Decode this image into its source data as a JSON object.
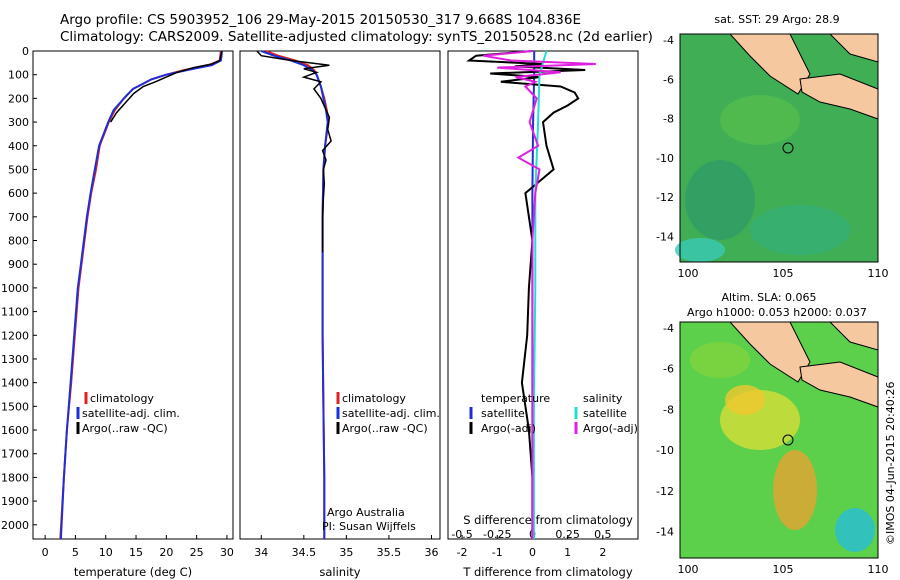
{
  "header": {
    "line1": "Argo profile: CS 5903952_106 29-May-2015 20150530_317 9.668S 104.836E",
    "line2": "Climatology: CARS2009. Satellite-adjusted climatology: synTS_20150528.nc (2d earlier)"
  },
  "colors": {
    "climatology": "#dd2222",
    "satellite": "#1f2fd8",
    "argo": "#000000",
    "sat_s": "#22dddd",
    "argo_s": "#e020e0",
    "land": "#f5c8a0"
  },
  "chart_data": [
    {
      "type": "line",
      "xlabel": "temperature (deg C)",
      "ylabel": "",
      "xlim": [
        -2,
        31
      ],
      "ylim": [
        0,
        2060
      ],
      "xticks": [
        "0",
        "5",
        "10",
        "15",
        "20",
        "25",
        "30"
      ],
      "yticks": [
        "0",
        "100",
        "200",
        "300",
        "400",
        "500",
        "600",
        "700",
        "800",
        "900",
        "1000",
        "1100",
        "1200",
        "1300",
        "1400",
        "1500",
        "1600",
        "1700",
        "1800",
        "1900",
        "2000"
      ],
      "legend": [
        "climatology",
        "satellite-adj. clim.",
        "Argo(..raw -QC)"
      ],
      "legend_position": "lower-center",
      "series": [
        {
          "name": "climatology",
          "depth": [
            0,
            40,
            60,
            80,
            100,
            120,
            140,
            160,
            200,
            250,
            300,
            400,
            500,
            600,
            700,
            800,
            900,
            1000,
            1200,
            1400,
            1600,
            1800,
            2060
          ],
          "values": [
            29,
            28.8,
            27,
            23,
            20,
            17.5,
            16,
            14.5,
            13,
            11.5,
            10.5,
            9,
            8.4,
            7.6,
            7,
            6.5,
            6,
            5.5,
            4.9,
            4.3,
            3.6,
            3.1,
            2.5
          ]
        },
        {
          "name": "satellite-adj. clim.",
          "depth": [
            0,
            40,
            60,
            80,
            100,
            120,
            140,
            160,
            200,
            250,
            300,
            400,
            500,
            600,
            700,
            800,
            900,
            1000,
            1200,
            1400,
            1600,
            1800,
            2060
          ],
          "values": [
            29.2,
            29,
            27.5,
            23.5,
            20,
            17.5,
            16,
            14.5,
            13,
            11.3,
            10.4,
            8.9,
            8.2,
            7.5,
            6.9,
            6.4,
            5.9,
            5.4,
            4.8,
            4.2,
            3.6,
            3.1,
            2.6
          ]
        },
        {
          "name": "Argo(..raw -QC)",
          "depth": [
            0,
            20,
            40,
            55,
            70,
            90,
            110,
            130,
            150,
            180,
            220,
            260,
            300
          ],
          "values": [
            29.1,
            29,
            28.8,
            27.5,
            24.5,
            21.8,
            20,
            18.2,
            16.2,
            14.6,
            13.2,
            11.8,
            10.8
          ]
        }
      ]
    },
    {
      "type": "line",
      "xlabel": "salinity",
      "xlim": [
        33.75,
        36.1
      ],
      "ylim": [
        0,
        2060
      ],
      "xticks": [
        "34",
        "34.5",
        "35",
        "35.5",
        "36"
      ],
      "legend": [
        "climatology",
        "satellite-adj. clim.",
        "Argo(..raw -QC)"
      ],
      "legend_position": "lower-center",
      "annotation": [
        "Argo Australia",
        "PI: Susan Wijffels"
      ],
      "series": [
        {
          "name": "climatology",
          "depth": [
            0,
            20,
            40,
            60,
            80,
            100,
            150,
            200,
            250,
            300,
            400,
            500,
            700,
            900,
            1200,
            1500,
            1800,
            2060
          ],
          "values": [
            34.05,
            34.2,
            34.4,
            34.55,
            34.62,
            34.65,
            34.7,
            34.74,
            34.77,
            34.79,
            34.75,
            34.73,
            34.72,
            34.72,
            34.72,
            34.73,
            34.74,
            34.74
          ]
        },
        {
          "name": "satellite-adj. clim.",
          "depth": [
            0,
            20,
            40,
            60,
            80,
            100,
            150,
            200,
            250,
            300,
            400,
            500,
            700,
            900,
            1200,
            1500,
            1800,
            2060
          ],
          "values": [
            34.0,
            34.15,
            34.35,
            34.5,
            34.6,
            34.65,
            34.7,
            34.73,
            34.76,
            34.78,
            34.75,
            34.73,
            34.72,
            34.72,
            34.72,
            34.73,
            34.74,
            34.74
          ]
        },
        {
          "name": "Argo(..raw -QC)",
          "depth": [
            0,
            20,
            40,
            60,
            75,
            90,
            110,
            130,
            160,
            200,
            240,
            280,
            330,
            380,
            420,
            460,
            500,
            560,
            620,
            700,
            780,
            850
          ],
          "values": [
            33.95,
            34.0,
            34.35,
            34.8,
            34.5,
            34.65,
            34.5,
            34.7,
            34.62,
            34.7,
            34.75,
            34.8,
            34.78,
            34.82,
            34.72,
            34.76,
            34.73,
            34.74,
            34.73,
            34.72,
            34.72,
            34.72
          ]
        }
      ]
    },
    {
      "type": "line",
      "xlabel": "T difference from climatology",
      "xlabel_top": "S difference from climatology",
      "xlim": [
        -2.4,
        3.0
      ],
      "ylim": [
        0,
        2060
      ],
      "xticks": [
        "-2",
        "-1",
        "0",
        "1",
        "2"
      ],
      "xticks_s": [
        "-0.5",
        "-0.25",
        "0",
        "0.25",
        "0.5"
      ],
      "legend_headers": [
        "temperature",
        "salinity"
      ],
      "legend": [
        "satellite",
        "Argo(-adj)",
        "satellite",
        "Argo(-adj)"
      ],
      "series": [
        {
          "name": "satellite",
          "depth": [
            0,
            100,
            300,
            600,
            1000,
            1500,
            2060
          ],
          "values": [
            0.05,
            0.05,
            0.02,
            0,
            0,
            0,
            0
          ]
        },
        {
          "name": "Argo(-adj)",
          "depth": [
            0,
            20,
            40,
            55,
            65,
            80,
            95,
            110,
            130,
            150,
            175,
            200,
            230,
            260,
            300,
            400,
            500,
            600,
            800,
            1000,
            1200,
            1400,
            1600,
            1800,
            2060
          ],
          "values": [
            0,
            -1.6,
            -1.8,
            0.3,
            -0.5,
            1.5,
            -1.2,
            0.2,
            -0.9,
            0.8,
            1.2,
            1.3,
            1.0,
            0.6,
            0.3,
            0.4,
            0.6,
            -0.2,
            0,
            -0.1,
            -0.15,
            -0.3,
            -0.1,
            0,
            0
          ]
        },
        {
          "name": "satellite",
          "depth": [
            0,
            100,
            300,
            600,
            1000,
            1500,
            2060
          ],
          "values": [
            0.1,
            0.05,
            0.04,
            0.02,
            0.02,
            0.01,
            0.01
          ]
        },
        {
          "name": "Argo(-adj)",
          "depth": [
            0,
            20,
            40,
            55,
            70,
            90,
            110,
            130,
            150,
            200,
            300,
            400,
            450,
            500,
            600,
            800,
            1200,
            2060
          ],
          "values": [
            0,
            -0.35,
            -0.15,
            0.45,
            -0.25,
            0.2,
            -0.12,
            0.02,
            -0.05,
            0.03,
            -0.02,
            0.04,
            -0.1,
            0.05,
            0.02,
            0,
            0,
            0
          ]
        }
      ]
    }
  ],
  "maps": [
    {
      "title": "sat. SST: 29 Argo: 28.9",
      "yticks": [
        "-4",
        "-6",
        "-8",
        "-10",
        "-12",
        "-14"
      ],
      "xticks": [
        "100",
        "105",
        "110"
      ]
    },
    {
      "title_line1": "Altim. SLA: 0.065",
      "title_line2": "Argo h1000: 0.053 h2000: 0.037",
      "yticks": [
        "-4",
        "-6",
        "-8",
        "-10",
        "-12",
        "-14"
      ],
      "xticks": [
        "100",
        "105",
        "110"
      ]
    }
  ],
  "stamp": "©IMOS 04-Jun-2015 20:40:26"
}
